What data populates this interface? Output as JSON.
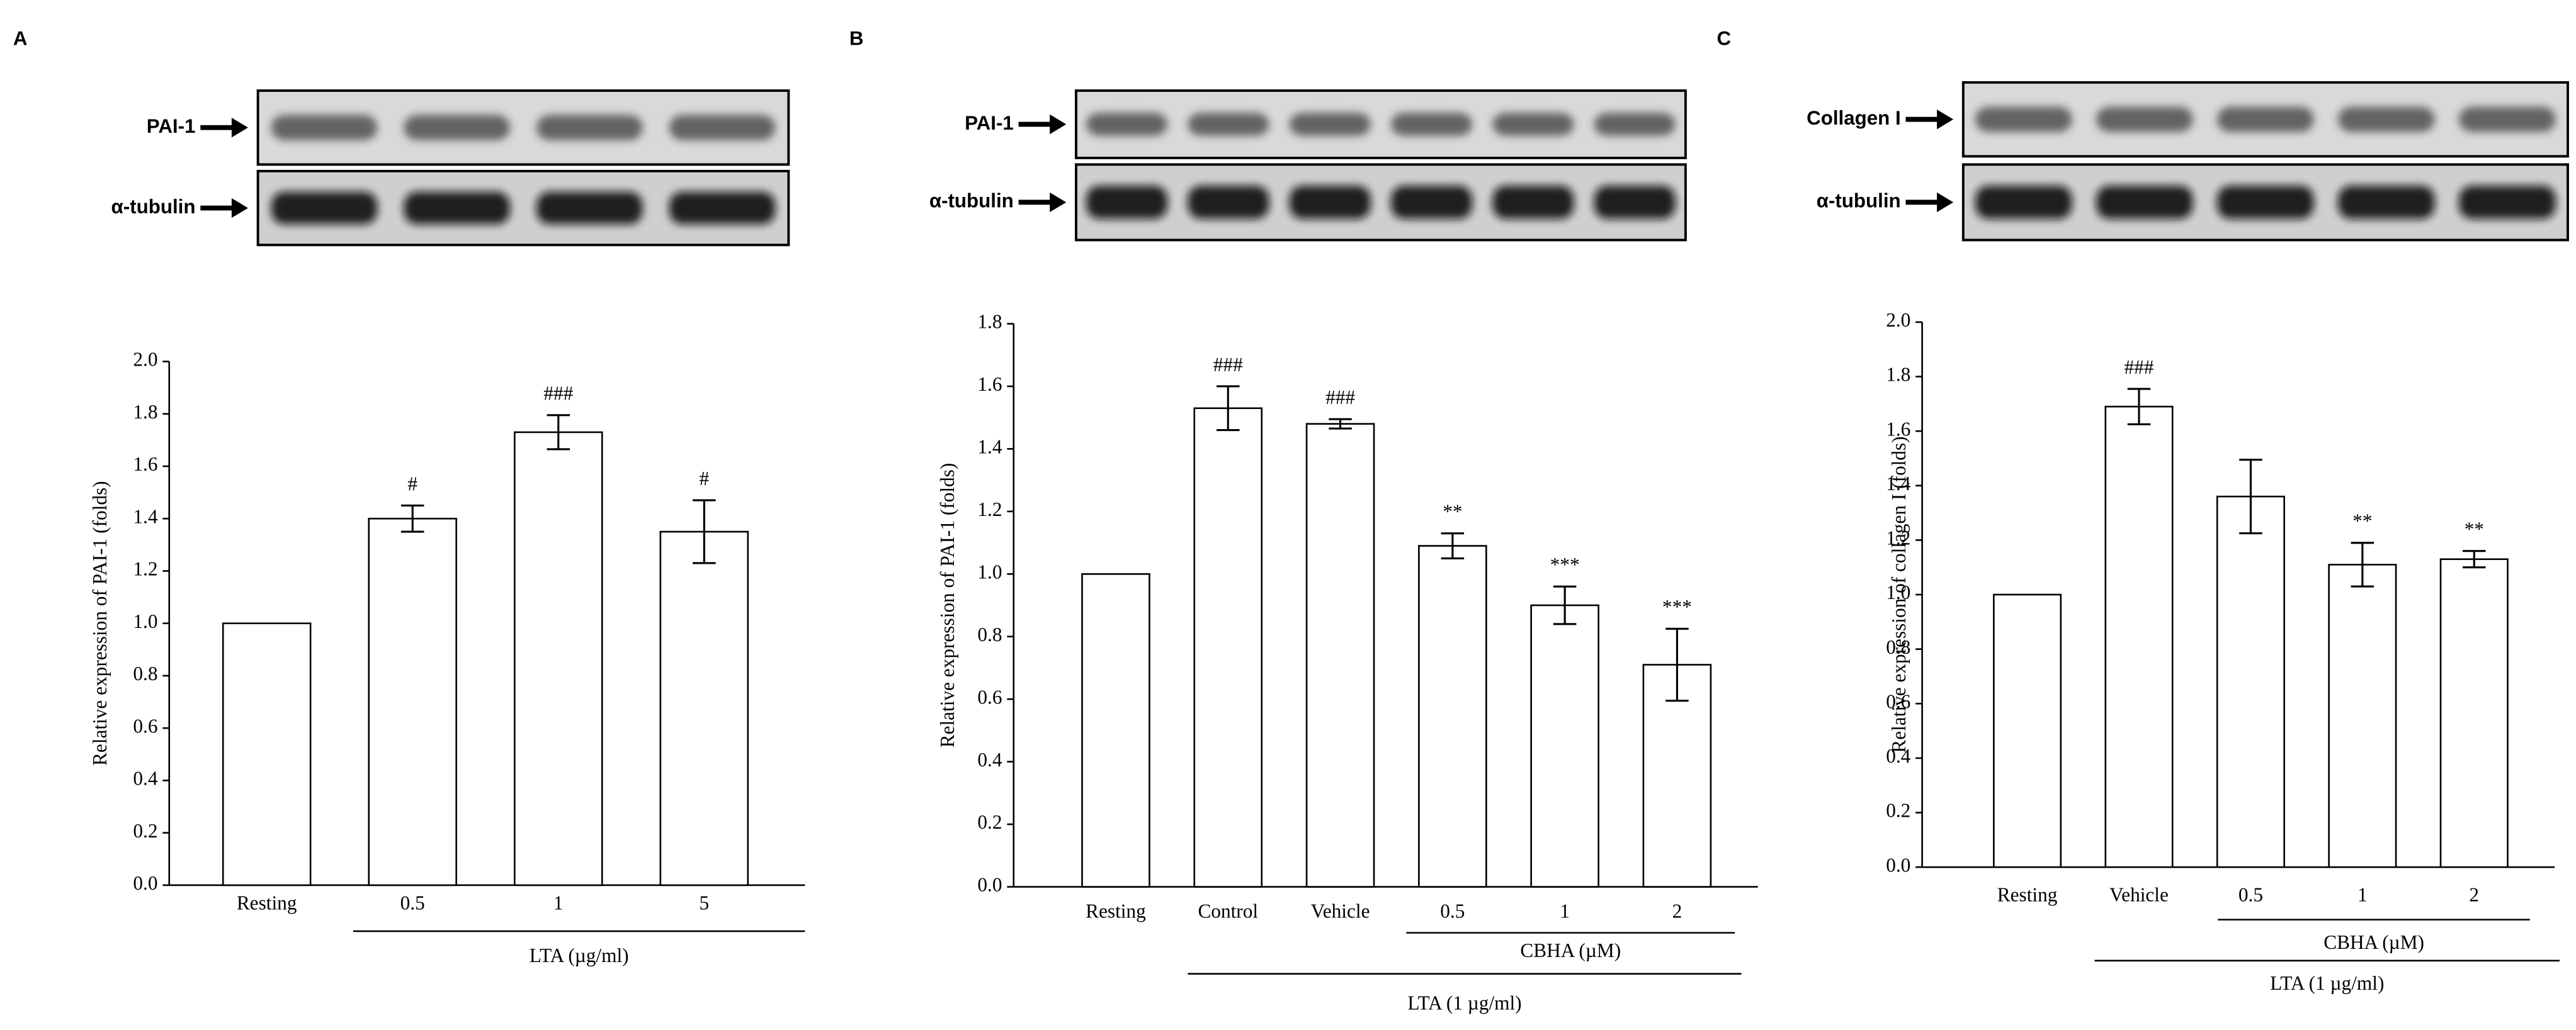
{
  "chart_data": [
    {
      "type": "bar",
      "panel": "A",
      "blot_labels": [
        "PAI-1",
        "α-tubulin"
      ],
      "ylabel": "Relative expression of PAI-1 (folds)",
      "categories": [
        "Resting",
        "0.5",
        "1",
        "5"
      ],
      "values": [
        1.0,
        1.4,
        1.73,
        1.35
      ],
      "errors": [
        null,
        0.05,
        0.065,
        0.12
      ],
      "annotations": [
        null,
        "#",
        "###",
        "#"
      ],
      "group_labels": [
        "LTA (µg/ml)"
      ],
      "color": "#ffffff",
      "ylim": [
        0,
        2.0
      ],
      "yticks": [
        {
          "value": 0,
          "label": "0.0"
        },
        0.2,
        0.4,
        0.6,
        0.8,
        {
          "value": 1,
          "label": "1.0"
        },
        1.2,
        1.4,
        1.6,
        1.8,
        {
          "value": 2,
          "label": "2.0"
        }
      ]
    },
    {
      "type": "bar",
      "panel": "B",
      "blot_labels": [
        "PAI-1",
        "α-tubulin"
      ],
      "ylabel": "Relative expression of PAI-1 (folds)",
      "categories": [
        "Resting",
        "Control",
        "Vehicle",
        "0.5",
        "1",
        "2"
      ],
      "values": [
        1.0,
        1.53,
        1.48,
        1.09,
        0.9,
        0.71
      ],
      "errors": [
        null,
        0.07,
        0.015,
        0.04,
        0.06,
        0.115
      ],
      "annotations": [
        null,
        "###",
        "###",
        "**",
        "***",
        "***"
      ],
      "group_labels": [
        "CBHA (µM)",
        "LTA (1 µg/ml)"
      ],
      "color": "#ffffff",
      "ylim": [
        0,
        1.8
      ],
      "yticks": [
        {
          "value": 0,
          "label": "0.0"
        },
        0.2,
        0.4,
        0.6,
        0.8,
        {
          "value": 1,
          "label": "1.0"
        },
        1.2,
        1.4,
        1.6,
        1.8
      ]
    },
    {
      "type": "bar",
      "panel": "C",
      "blot_labels": [
        "Collagen I",
        "α-tubulin"
      ],
      "ylabel": "Relative expression of collagen I (folds)",
      "categories": [
        "Resting",
        "Vehicle",
        "0.5",
        "1",
        "2"
      ],
      "values": [
        1.0,
        1.69,
        1.36,
        1.11,
        1.13
      ],
      "errors": [
        null,
        0.065,
        0.135,
        0.08,
        0.03
      ],
      "annotations": [
        null,
        "###",
        null,
        "**",
        "**"
      ],
      "group_labels": [
        "CBHA (µM)",
        "LTA (1 µg/ml)"
      ],
      "color": "#ffffff",
      "ylim": [
        0,
        2.0
      ],
      "yticks": [
        {
          "value": 0,
          "label": "0.0"
        },
        0.2,
        0.4,
        0.6,
        0.8,
        {
          "value": 1,
          "label": "1.0"
        },
        1.2,
        1.4,
        1.6,
        1.8,
        {
          "value": 2,
          "label": "2.0"
        }
      ]
    }
  ]
}
